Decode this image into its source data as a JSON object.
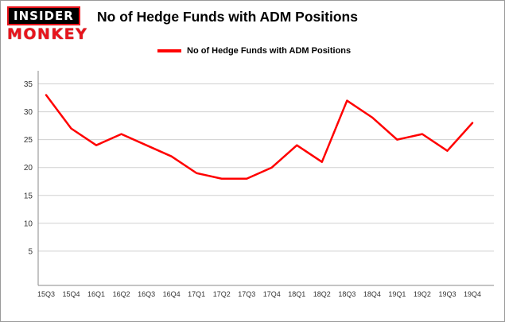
{
  "logo": {
    "line1": "INSIDER",
    "line2": "MONKEY"
  },
  "header": {
    "title": "No of Hedge Funds with ADM Positions"
  },
  "legend": {
    "label": "No of Hedge Funds with ADM Positions",
    "color": "#ff0000"
  },
  "chart_data": {
    "type": "line",
    "title": "No of Hedge Funds with ADM Positions",
    "categories": [
      "15Q3",
      "15Q4",
      "16Q1",
      "16Q2",
      "16Q3",
      "16Q4",
      "17Q1",
      "17Q2",
      "17Q3",
      "17Q4",
      "18Q1",
      "18Q2",
      "18Q3",
      "18Q4",
      "19Q1",
      "19Q2",
      "19Q3",
      "19Q4"
    ],
    "values": [
      33,
      27,
      24,
      26,
      24,
      22,
      19,
      18,
      18,
      20,
      24,
      21,
      32,
      29,
      25,
      26,
      23,
      28
    ],
    "xlabel": "",
    "ylabel": "",
    "ylim": [
      0,
      36.5
    ],
    "yticks": [
      5,
      10,
      15,
      20,
      25,
      30,
      35
    ],
    "grid": true,
    "legend_position": "top-left",
    "line_color": "#ff0000",
    "grid_color": "#d0d0d0",
    "axis_color": "#8a8a8a",
    "tick_label_color": "#333333"
  }
}
